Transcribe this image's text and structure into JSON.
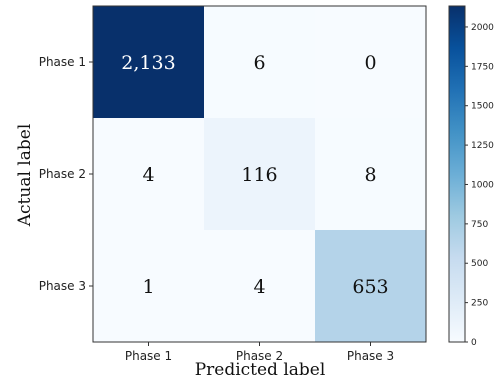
{
  "chart_data": {
    "type": "heatmap",
    "title": "",
    "xlabel": "Predicted label",
    "ylabel": "Actual label",
    "x_categories": [
      "Phase 1",
      "Phase 2",
      "Phase 3"
    ],
    "y_categories": [
      "Phase 1",
      "Phase 2",
      "Phase 3"
    ],
    "matrix": [
      [
        2133,
        6,
        0
      ],
      [
        4,
        116,
        8
      ],
      [
        1,
        4,
        653
      ]
    ],
    "cell_labels": [
      [
        "2,133",
        "6",
        "0"
      ],
      [
        "4",
        "116",
        "8"
      ],
      [
        "1",
        "4",
        "653"
      ]
    ],
    "colormap": "Blues",
    "colorbar": {
      "range": [
        0,
        2133
      ],
      "ticks": [
        0,
        250,
        500,
        750,
        1000,
        1250,
        1500,
        1750,
        2000
      ],
      "tick_labels": [
        "0",
        "250",
        "500",
        "750",
        "1000",
        "1250",
        "1500",
        "1750",
        "2000"
      ]
    },
    "colors": {
      "low": "#f7fbff",
      "high": "#08306b",
      "text_dark": "#111111",
      "text_light": "#ffffff"
    }
  }
}
